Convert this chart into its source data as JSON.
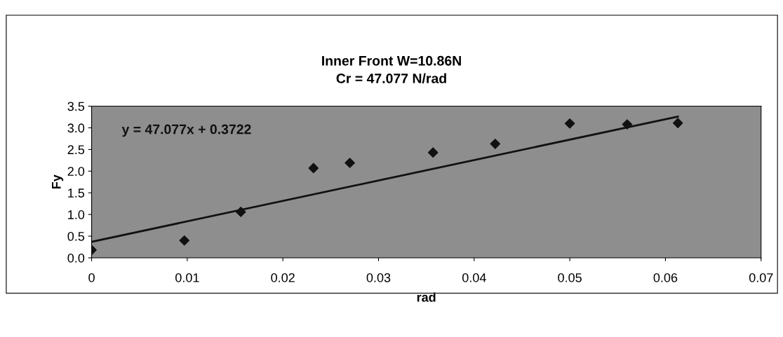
{
  "chart_data": {
    "type": "scatter",
    "title": "Inner Front W=10.86N\nCr = 47.077 N/rad",
    "xlabel": "rad",
    "ylabel": "Fy",
    "annotations": [
      "y = 47.077x + 0.3722"
    ],
    "marker": "diamond",
    "grid": false,
    "legend": false,
    "xlim": [
      0,
      0.07
    ],
    "xticks": [
      0,
      0.01,
      0.02,
      0.03,
      0.04,
      0.05,
      0.06,
      0.07
    ],
    "ylim": [
      0,
      3.5
    ],
    "yticks": [
      {
        "value": 0,
        "label": "0.0"
      },
      {
        "value": 0.5,
        "label": "0.5"
      },
      {
        "value": 1,
        "label": "1.0"
      },
      {
        "value": 1.5,
        "label": "1.5"
      },
      {
        "value": 2,
        "label": "2.0"
      },
      {
        "value": 2.5,
        "label": "2.5"
      },
      {
        "value": 3,
        "label": "3.0"
      },
      {
        "value": 3.5,
        "label": "3.5"
      }
    ],
    "series": [
      {
        "color": "#111111",
        "x": [
          0,
          0.0097,
          0.0156,
          0.0232,
          0.027,
          0.0357,
          0.0422,
          0.05,
          0.056,
          0.0613
        ],
        "values": [
          0.18,
          0.4,
          1.06,
          2.07,
          2.19,
          2.43,
          2.63,
          3.1,
          3.08,
          3.11
        ]
      },
      {
        "type": "line",
        "color": "#111111",
        "marker": "none",
        "x": [
          0,
          0.0613
        ],
        "values": [
          0.37,
          3.26
        ]
      }
    ]
  }
}
